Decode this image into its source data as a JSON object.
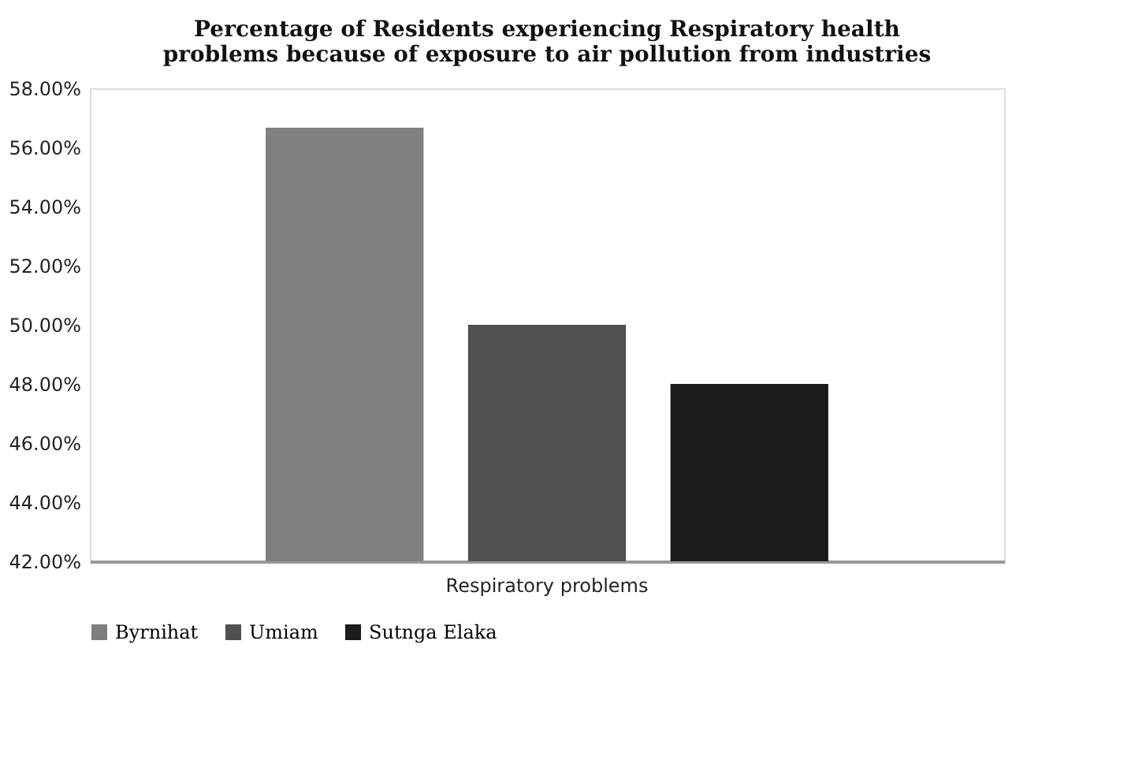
{
  "chart_data": {
    "type": "bar",
    "title": "Percentage of Residents experiencing Respiratory health problems because of exposure to air pollution from industries",
    "categories": [
      "Respiratory problems"
    ],
    "series": [
      {
        "name": "Byrnihat",
        "color": "#7f7f7f",
        "values": [
          56.67
        ]
      },
      {
        "name": "Umiam",
        "color": "#505050",
        "values": [
          50.0
        ]
      },
      {
        "name": "Sutnga Elaka",
        "color": "#1c1c1c",
        "values": [
          48.0
        ]
      }
    ],
    "ylim": [
      42,
      58
    ],
    "yticks": [
      {
        "value": 42,
        "label": "42.00%"
      },
      {
        "value": 44,
        "label": "44.00%"
      },
      {
        "value": 46,
        "label": "46.00%"
      },
      {
        "value": 48,
        "label": "48.00%"
      },
      {
        "value": 50,
        "label": "50.00%"
      },
      {
        "value": 52,
        "label": "52.00%"
      },
      {
        "value": 54,
        "label": "54.00%"
      },
      {
        "value": 56,
        "label": "56.00%"
      },
      {
        "value": 58,
        "label": "58.00%"
      }
    ],
    "grid": false,
    "legend": "bottom"
  }
}
